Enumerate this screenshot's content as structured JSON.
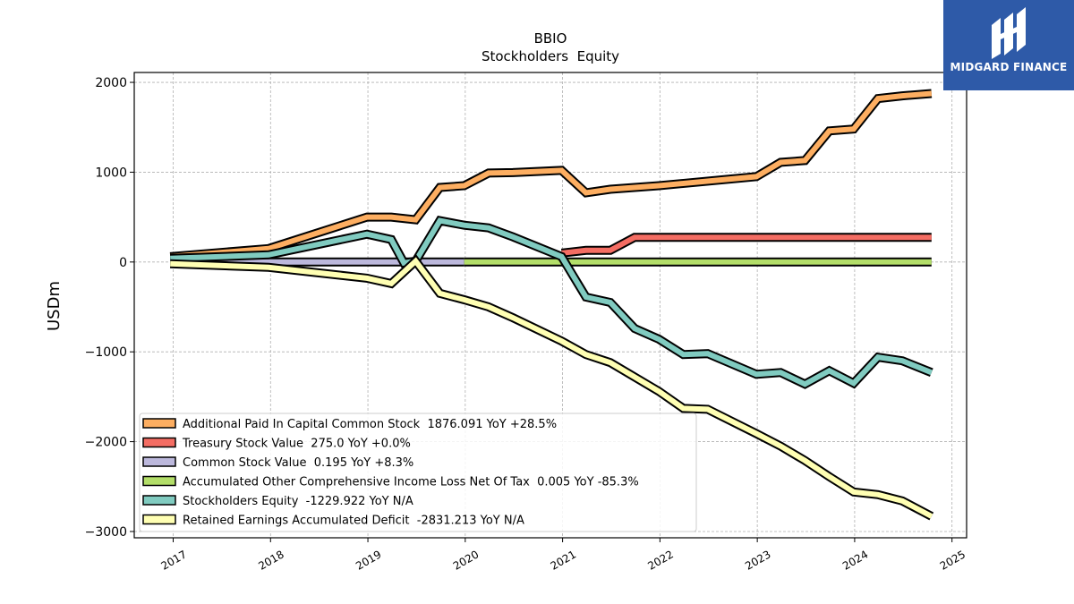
{
  "chart_data": {
    "type": "line",
    "title": "BBIO",
    "subtitle": "Stockholders  Equity",
    "ylabel": "USDm",
    "xlabel": "",
    "xlim": [
      2016.6,
      2025.15
    ],
    "ylim": [
      -3070,
      2110
    ],
    "x_ticks": [
      2017,
      2018,
      2019,
      2020,
      2021,
      2022,
      2023,
      2024,
      2025
    ],
    "y_ticks": [
      2000,
      1000,
      0,
      -1000,
      -2000,
      -3000
    ],
    "y_tick_labels": [
      "2000",
      "1000",
      "0",
      "−1000",
      "−2000",
      "−3000"
    ],
    "grid": true,
    "legend_position": "lower-left",
    "series": [
      {
        "name": "Additional Paid In Capital Common Stock  1876.091 YoY +28.5%",
        "color": "#fdae61",
        "points": [
          [
            2016.97,
            60
          ],
          [
            2017.98,
            150
          ],
          [
            2018.99,
            500
          ],
          [
            2019.24,
            500
          ],
          [
            2019.49,
            470
          ],
          [
            2019.74,
            830
          ],
          [
            2019.99,
            850
          ],
          [
            2020.24,
            990
          ],
          [
            2020.49,
            995
          ],
          [
            2020.99,
            1020
          ],
          [
            2021.24,
            770
          ],
          [
            2021.49,
            810
          ],
          [
            2021.99,
            850
          ],
          [
            2022.99,
            950
          ],
          [
            2023.24,
            1110
          ],
          [
            2023.49,
            1130
          ],
          [
            2023.74,
            1460
          ],
          [
            2023.99,
            1480
          ],
          [
            2024.24,
            1820
          ],
          [
            2024.49,
            1850
          ],
          [
            2024.79,
            1876
          ]
        ]
      },
      {
        "name": "Treasury Stock Value  275.0 YoY +0.0%",
        "color": "#f46d63",
        "points": [
          [
            2020.99,
            100
          ],
          [
            2021.24,
            130
          ],
          [
            2021.49,
            130
          ],
          [
            2021.74,
            275
          ],
          [
            2024.79,
            275
          ]
        ]
      },
      {
        "name": "Common Stock Value  0.195 YoY +8.3%",
        "color": "#bcb8dc",
        "points": [
          [
            2016.97,
            0.1
          ],
          [
            2019.99,
            0.1
          ]
        ]
      },
      {
        "name": "Accumulated Other Comprehensive Income Loss Net Of Tax  0.005 YoY -85.3%",
        "color": "#b3de69",
        "points": [
          [
            2019.99,
            0.0
          ],
          [
            2024.79,
            0.0
          ]
        ]
      },
      {
        "name": "Stockholders Equity  -1229.922 YoY N/A",
        "color": "#80cbc0",
        "points": [
          [
            2016.97,
            40
          ],
          [
            2017.98,
            80
          ],
          [
            2018.99,
            310
          ],
          [
            2019.24,
            250
          ],
          [
            2019.37,
            -10
          ],
          [
            2019.49,
            10
          ],
          [
            2019.74,
            460
          ],
          [
            2019.99,
            410
          ],
          [
            2020.24,
            380
          ],
          [
            2020.49,
            280
          ],
          [
            2020.99,
            60
          ],
          [
            2021.24,
            -390
          ],
          [
            2021.49,
            -450
          ],
          [
            2021.74,
            -740
          ],
          [
            2021.99,
            -860
          ],
          [
            2022.24,
            -1030
          ],
          [
            2022.49,
            -1020
          ],
          [
            2022.99,
            -1250
          ],
          [
            2023.24,
            -1230
          ],
          [
            2023.49,
            -1360
          ],
          [
            2023.74,
            -1210
          ],
          [
            2023.99,
            -1350
          ],
          [
            2024.24,
            -1060
          ],
          [
            2024.49,
            -1100
          ],
          [
            2024.79,
            -1230
          ]
        ]
      },
      {
        "name": "Retained Earnings Accumulated Deficit  -2831.213 YoY N/A",
        "color": "#ffffb3",
        "points": [
          [
            2016.97,
            -20
          ],
          [
            2017.98,
            -60
          ],
          [
            2018.99,
            -180
          ],
          [
            2019.24,
            -240
          ],
          [
            2019.49,
            10
          ],
          [
            2019.74,
            -350
          ],
          [
            2019.99,
            -420
          ],
          [
            2020.24,
            -500
          ],
          [
            2020.49,
            -620
          ],
          [
            2020.99,
            -880
          ],
          [
            2021.24,
            -1030
          ],
          [
            2021.49,
            -1120
          ],
          [
            2021.99,
            -1440
          ],
          [
            2022.24,
            -1630
          ],
          [
            2022.49,
            -1640
          ],
          [
            2022.99,
            -1910
          ],
          [
            2023.24,
            -2050
          ],
          [
            2023.49,
            -2210
          ],
          [
            2023.74,
            -2390
          ],
          [
            2023.99,
            -2560
          ],
          [
            2024.24,
            -2590
          ],
          [
            2024.49,
            -2660
          ],
          [
            2024.79,
            -2831
          ]
        ]
      }
    ]
  },
  "logo": {
    "text": "MIDGARD FINANCE",
    "icon": "midgard-logo-icon",
    "color": "#2e5aa8"
  }
}
